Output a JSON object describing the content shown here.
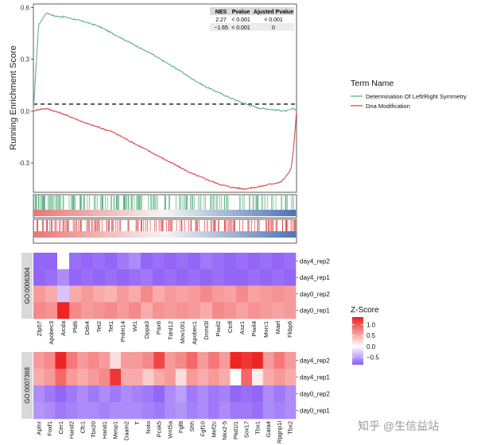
{
  "chart_data": [
    {
      "type": "line",
      "ylabel": "Running Enrichment Score",
      "ylim": [
        -0.47,
        0.62
      ],
      "yticks": [
        -0.3,
        0.0,
        0.3,
        0.6
      ],
      "ytick_labels": [
        "-0.3",
        "0.0",
        "0.3",
        "0.6"
      ],
      "legend": {
        "title": "Term Name",
        "placement": "right"
      },
      "series": [
        {
          "name": "Determination Of Left/Right Symmetry",
          "color": "#5fb383",
          "x": [
            0,
            0.02,
            0.05,
            0.08,
            0.12,
            0.16,
            0.2,
            0.25,
            0.3,
            0.35,
            0.4,
            0.45,
            0.5,
            0.55,
            0.6,
            0.65,
            0.7,
            0.75,
            0.8,
            0.85,
            0.9,
            0.93,
            0.96,
            0.99,
            1.0
          ],
          "y": [
            0.0,
            0.5,
            0.57,
            0.55,
            0.545,
            0.53,
            0.515,
            0.49,
            0.45,
            0.41,
            0.37,
            0.33,
            0.285,
            0.24,
            0.19,
            0.145,
            0.11,
            0.075,
            0.045,
            0.02,
            0.01,
            0.005,
            0.0,
            0.015,
            0.0
          ]
        },
        {
          "name": "Dna Modification",
          "color": "#d9474a",
          "x": [
            0,
            0.02,
            0.05,
            0.08,
            0.12,
            0.16,
            0.2,
            0.25,
            0.3,
            0.35,
            0.4,
            0.45,
            0.5,
            0.55,
            0.6,
            0.65,
            0.7,
            0.75,
            0.8,
            0.85,
            0.88,
            0.91,
            0.94,
            0.96,
            0.98,
            0.99,
            1.0
          ],
          "y": [
            0.0,
            0.01,
            0.015,
            0.0,
            -0.02,
            -0.045,
            -0.07,
            -0.095,
            -0.12,
            -0.16,
            -0.2,
            -0.24,
            -0.28,
            -0.32,
            -0.36,
            -0.39,
            -0.42,
            -0.44,
            -0.45,
            -0.44,
            -0.43,
            -0.42,
            -0.41,
            -0.38,
            -0.33,
            -0.2,
            0.0
          ]
        }
      ],
      "table": {
        "headers": [
          "NES",
          "Pvalue",
          "Ajusted Pvalue"
        ],
        "rows": [
          [
            "2.27",
            "< 0.001",
            "< 0.001"
          ],
          [
            "−1.65",
            "< 0.001",
            "0"
          ]
        ]
      }
    },
    {
      "type": "heatmap",
      "group": "GO:0006304",
      "rows": [
        "day4_rep2",
        "day4_rep1",
        "day0_rep2",
        "day0_rep1"
      ],
      "columns": [
        "Zfp57",
        "Apobec3",
        "Aicda",
        "Pld6",
        "Ddx4",
        "Tet2",
        "Tet1",
        "Prdm14",
        "Wt1",
        "Dppa3",
        "Pax6",
        "Tdrd12",
        "Mov10l1",
        "Apobec1",
        "Dnmt3l",
        "Piwil2",
        "Ctcfl",
        "Asz1",
        "Piwil4",
        "Morc1",
        "Mael",
        "Fkbp6"
      ],
      "values": [
        [
          -0.8,
          -0.8,
          0.0,
          -0.75,
          -0.8,
          -0.75,
          -0.8,
          -0.7,
          -0.6,
          -0.8,
          -0.75,
          -0.8,
          -0.75,
          -0.8,
          -0.7,
          -0.75,
          -0.8,
          -0.75,
          -0.8,
          -0.75,
          -0.8,
          -0.75
        ],
        [
          -0.8,
          -0.75,
          -0.6,
          -0.8,
          -0.75,
          -0.8,
          -0.75,
          -0.8,
          -0.75,
          -0.7,
          -0.8,
          -0.75,
          -0.8,
          -0.75,
          -0.8,
          -0.75,
          -0.8,
          -0.8,
          -0.75,
          -0.8,
          -0.75,
          -0.8
        ],
        [
          0.6,
          0.5,
          -0.3,
          0.5,
          0.6,
          0.5,
          0.45,
          0.6,
          0.5,
          0.7,
          0.5,
          0.6,
          0.55,
          0.6,
          0.7,
          0.6,
          0.55,
          0.7,
          0.55,
          0.6,
          0.65,
          0.6
        ],
        [
          0.7,
          0.65,
          1.3,
          0.7,
          0.6,
          0.65,
          0.7,
          0.6,
          0.7,
          0.5,
          0.65,
          0.6,
          0.65,
          0.6,
          0.5,
          0.7,
          0.65,
          0.55,
          0.65,
          0.6,
          0.55,
          0.6
        ]
      ]
    },
    {
      "type": "heatmap",
      "group": "GO:0007368",
      "rows": [
        "day4_rep2",
        "day4_rep1",
        "day0_rep2",
        "day0_rep1"
      ],
      "columns": [
        "Aplnr",
        "Foxf1",
        "Cer1",
        "Hand2",
        "Cfc1",
        "Tbx20",
        "Hand1",
        "Mesp1",
        "Daam2",
        "T",
        "Noto",
        "Pcsk5",
        "Wnt5a",
        "Fgf8",
        "Shh",
        "Fgf10",
        "Mef2c",
        "Nkx2-5",
        "Pkd1l1",
        "Sox17",
        "Tbx1",
        "Gata4",
        "Rpgrip1l",
        "Tbx2"
      ],
      "values": [
        [
          0.6,
          0.7,
          1.3,
          0.8,
          0.6,
          0.7,
          0.6,
          0.2,
          0.6,
          0.6,
          0.7,
          1.1,
          0.6,
          0.7,
          0.9,
          0.6,
          0.8,
          0.6,
          1.3,
          1.2,
          1.3,
          0.6,
          0.8,
          0.6
        ],
        [
          0.5,
          0.6,
          0.9,
          0.6,
          0.5,
          0.6,
          0.7,
          1.2,
          0.5,
          0.5,
          0.3,
          0.5,
          0.6,
          0.2,
          0.6,
          0.5,
          0.6,
          0.5,
          0.0,
          0.9,
          0.1,
          0.5,
          0.6,
          0.5
        ],
        [
          -0.6,
          -0.7,
          -0.8,
          -0.7,
          -0.6,
          -0.7,
          -0.6,
          -0.7,
          -0.6,
          -0.65,
          -0.7,
          -0.8,
          -0.6,
          -0.5,
          -0.7,
          -0.6,
          -0.7,
          -0.65,
          -0.8,
          -0.75,
          -0.8,
          -0.6,
          -0.7,
          -0.6
        ],
        [
          -0.55,
          -0.6,
          -0.7,
          -0.65,
          -0.6,
          -0.6,
          -0.65,
          -0.6,
          -0.6,
          -0.6,
          -0.65,
          -0.7,
          -0.6,
          -0.55,
          -0.65,
          -0.6,
          -0.7,
          -0.6,
          -0.7,
          -0.7,
          -0.75,
          -0.6,
          -0.65,
          -0.6
        ]
      ]
    }
  ],
  "colorbar": {
    "title": "Z-Score",
    "ticks": [
      1.0,
      0.5,
      0.0,
      -0.5
    ],
    "tick_labels": [
      "1.0",
      "0.5",
      "0.0",
      "−0.5"
    ],
    "range": [
      -0.85,
      1.35
    ],
    "low_color": "#8b5cf6",
    "mid_color": "#ffffff",
    "high_color": "#ee1c1c"
  },
  "watermark": "知乎 @生信益站"
}
